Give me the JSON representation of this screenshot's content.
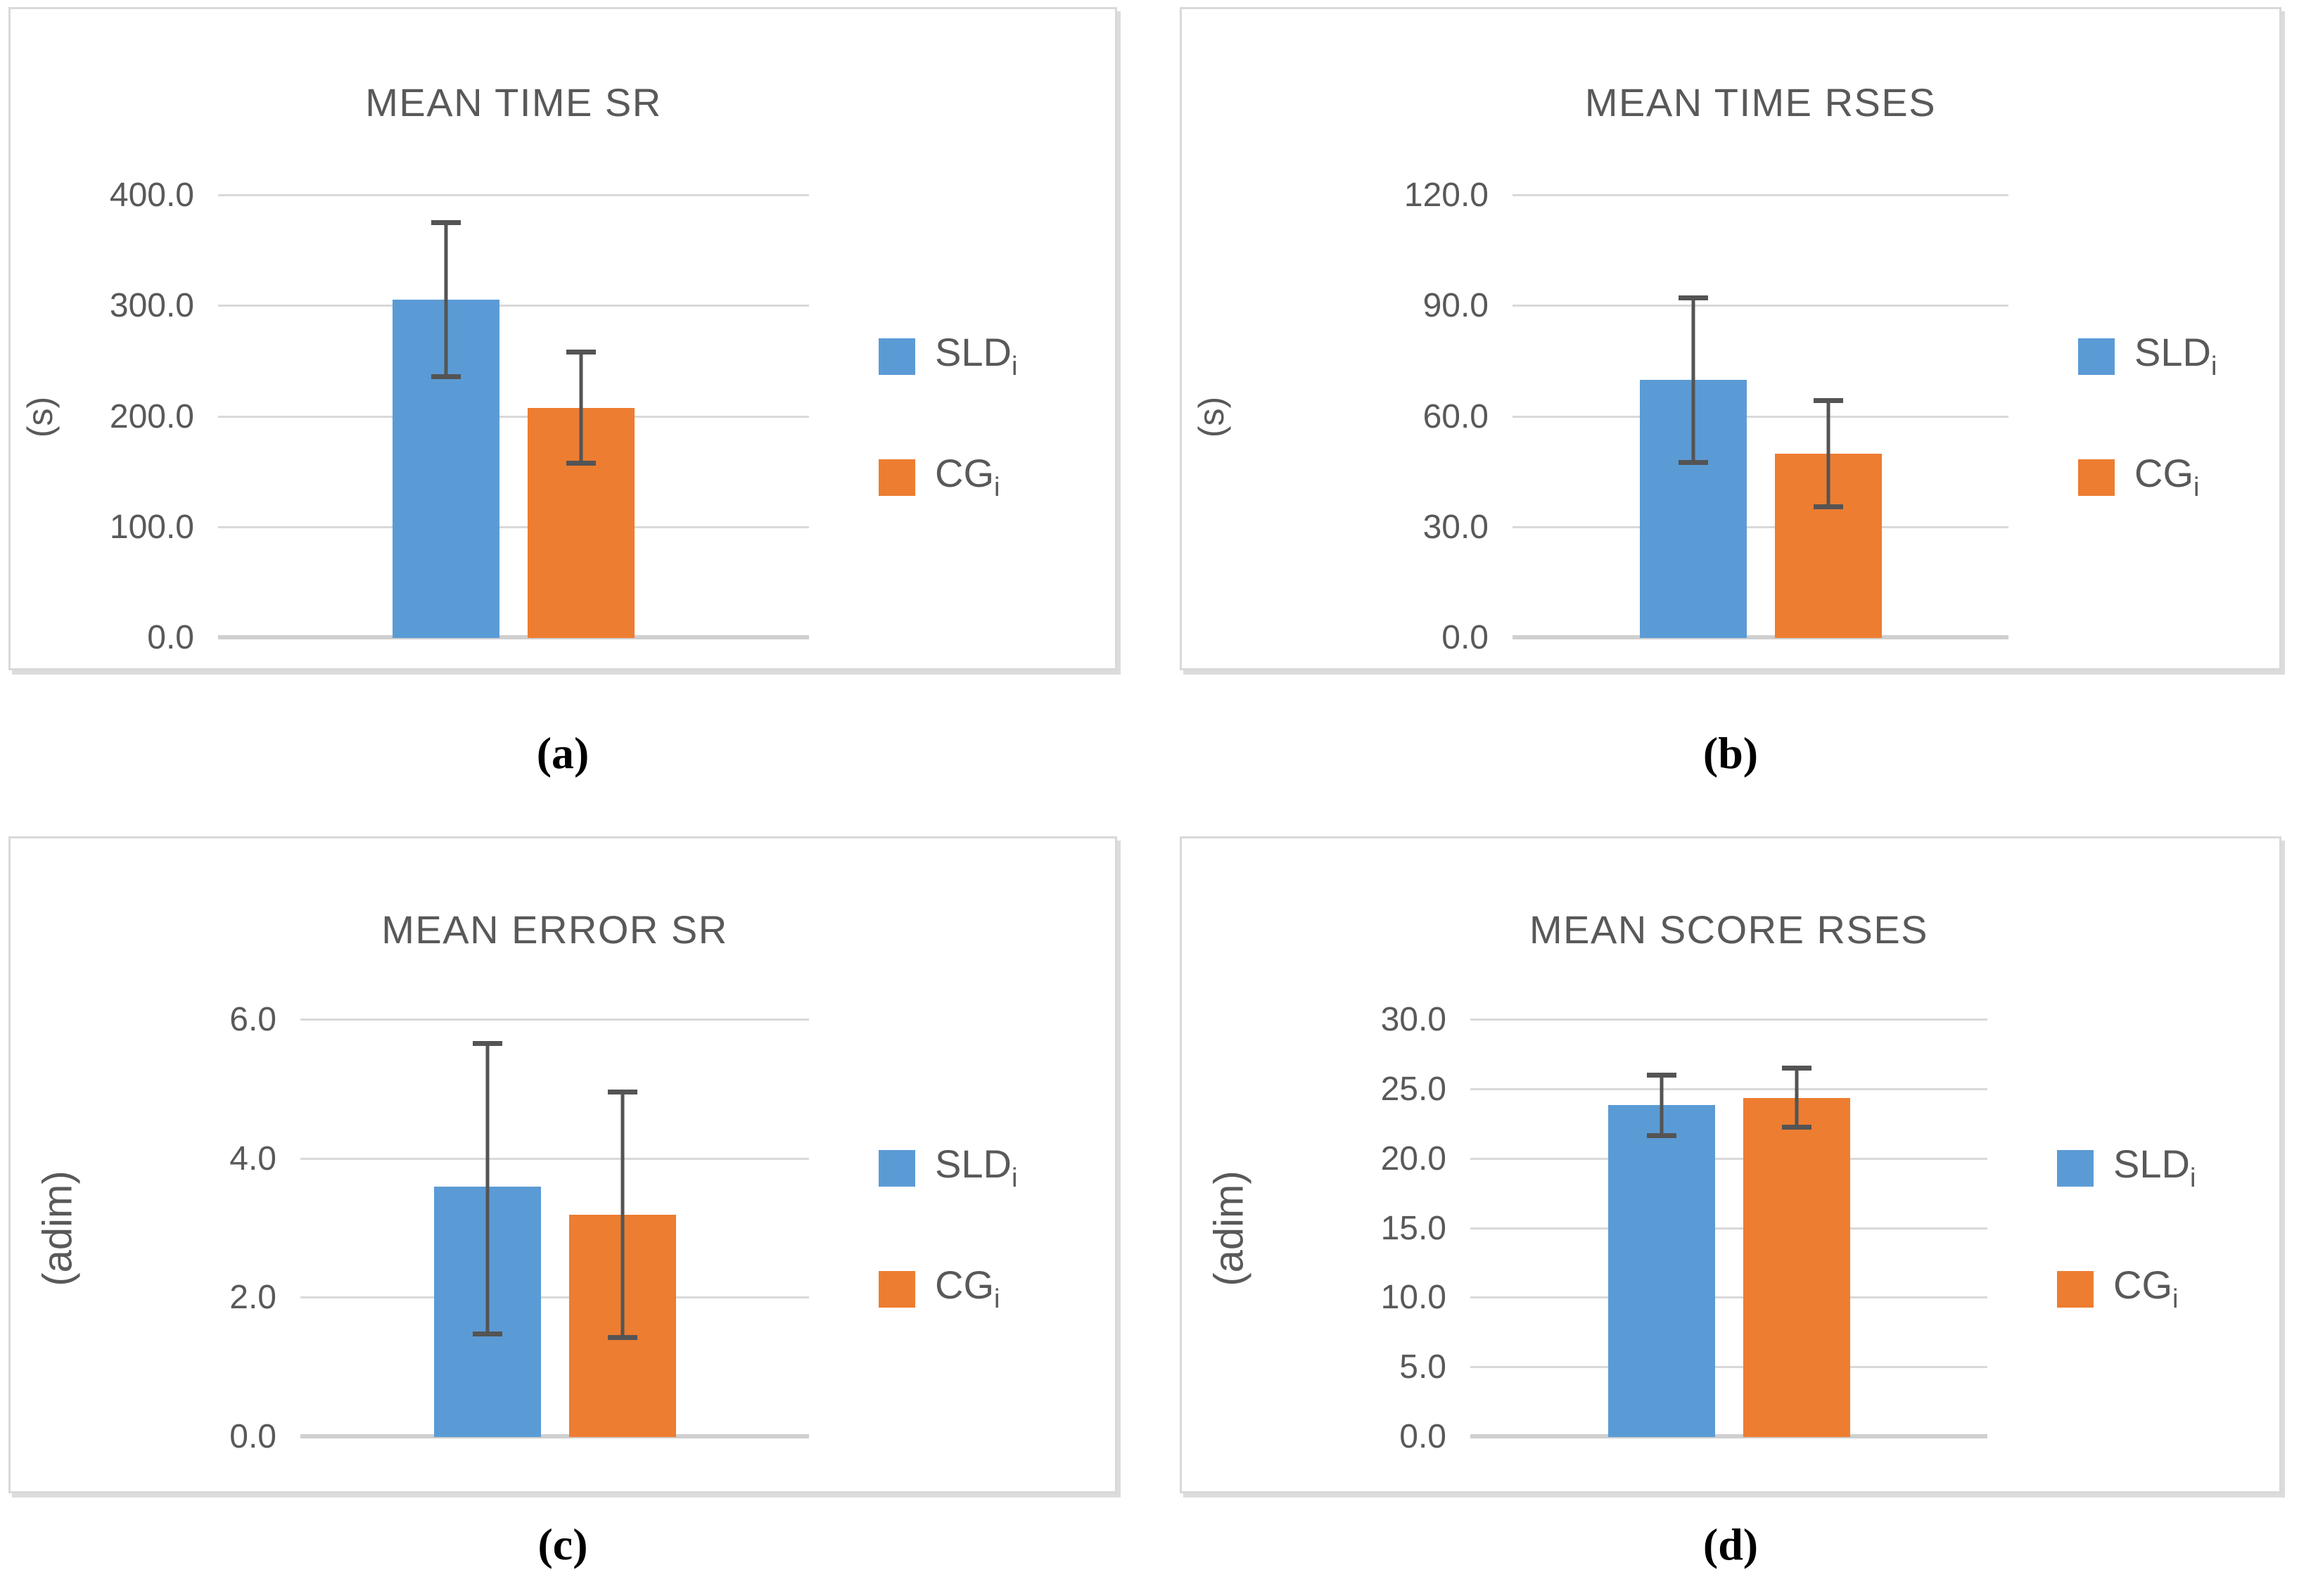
{
  "figure": {
    "background": "#ffffff",
    "captions": [
      "(a)",
      "(b)",
      "(c)",
      "(d)"
    ]
  },
  "colors": {
    "series": [
      "#5B9BD5",
      "#ED7D31"
    ],
    "axis_text": "#595959",
    "title_text": "#595959",
    "gridline": "#D9D9D9",
    "baseline": "#CFCFCF",
    "error_bar": "#545454",
    "panel_border": "#D9D9D9",
    "caption_text": "#000000"
  },
  "legend": {
    "position": "right",
    "items": [
      {
        "label": "SLD",
        "sub": "i"
      },
      {
        "label": "CG",
        "sub": "i"
      }
    ]
  },
  "chart_data": [
    {
      "panel_id": "a",
      "caption": "(a)",
      "type": "bar",
      "title": "MEAN TIME SR",
      "ylabel": "(s)",
      "categories": [
        "SLDi",
        "CGi"
      ],
      "series": [
        {
          "name": "SLDi",
          "value": 306,
          "error_low": 234,
          "error_high": 378
        },
        {
          "name": "CGi",
          "value": 208,
          "error_low": 156,
          "error_high": 261
        }
      ],
      "ylim": [
        0,
        400
      ],
      "ytick_step": 100,
      "ytick_labels": [
        "0.0",
        "100.0",
        "200.0",
        "300.0",
        "400.0"
      ],
      "grid": true,
      "legend_position": "right"
    },
    {
      "panel_id": "b",
      "caption": "(b)",
      "type": "bar",
      "title": "MEAN TIME RSES",
      "ylabel": "(s)",
      "categories": [
        "SLDi",
        "CGi"
      ],
      "series": [
        {
          "name": "SLDi",
          "value": 70,
          "error_low": 47,
          "error_high": 93
        },
        {
          "name": "CGi",
          "value": 50,
          "error_low": 35,
          "error_high": 65
        }
      ],
      "ylim": [
        0,
        120
      ],
      "ytick_step": 30,
      "ytick_labels": [
        "0.0",
        "30.0",
        "60.0",
        "90.0",
        "120.0"
      ],
      "grid": true,
      "legend_position": "right"
    },
    {
      "panel_id": "c",
      "caption": "(c)",
      "type": "bar",
      "title": "MEAN ERROR SR",
      "ylabel": "(adim)",
      "categories": [
        "SLDi",
        "CGi"
      ],
      "series": [
        {
          "name": "SLDi",
          "value": 3.6,
          "error_low": 1.45,
          "error_high": 5.7
        },
        {
          "name": "CGi",
          "value": 3.2,
          "error_low": 1.4,
          "error_high": 5.0
        }
      ],
      "ylim": [
        0,
        6
      ],
      "ytick_step": 2,
      "ytick_labels": [
        "0.0",
        "2.0",
        "4.0",
        "6.0"
      ],
      "grid": true,
      "legend_position": "right"
    },
    {
      "panel_id": "d",
      "caption": "(d)",
      "type": "bar",
      "title": "MEAN SCORE RSES",
      "ylabel": "(adim)",
      "categories": [
        "SLDi",
        "CGi"
      ],
      "series": [
        {
          "name": "SLDi",
          "value": 23.9,
          "error_low": 21.5,
          "error_high": 26.2
        },
        {
          "name": "CGi",
          "value": 24.4,
          "error_low": 22.1,
          "error_high": 26.7
        }
      ],
      "ylim": [
        0,
        30
      ],
      "ytick_step": 5,
      "ytick_labels": [
        "0.0",
        "5.0",
        "10.0",
        "15.0",
        "20.0",
        "25.0",
        "30.0"
      ],
      "grid": true,
      "legend_position": "right"
    }
  ]
}
